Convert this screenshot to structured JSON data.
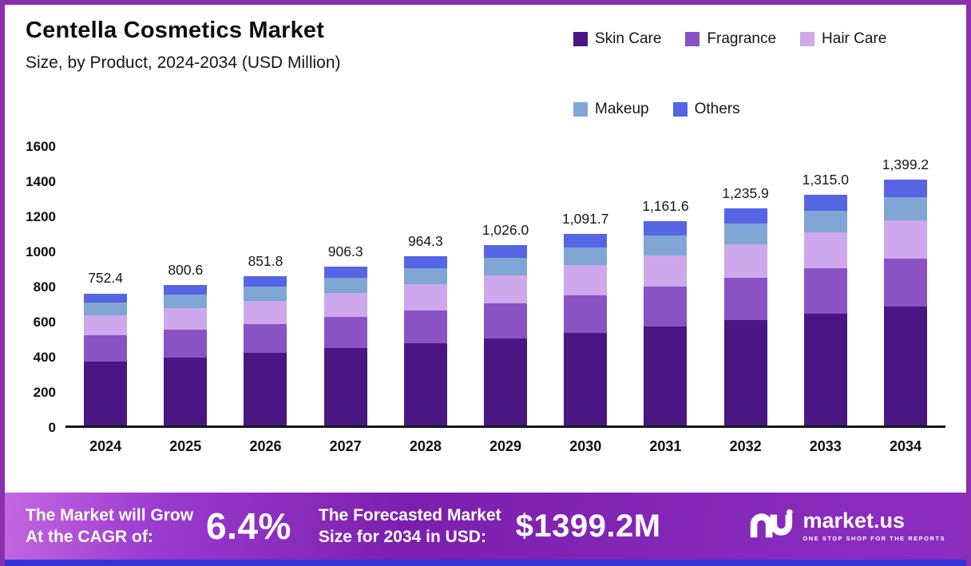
{
  "header": {
    "title": "Centella Cosmetics Market",
    "subtitle": "Size, by Product, 2024-2034 (USD Million)"
  },
  "chart_data": {
    "type": "bar",
    "stacked": true,
    "title": "Centella Cosmetics Market",
    "subtitle": "Size, by Product, 2024-2034 (USD Million)",
    "unit": "USD Million",
    "categories": [
      "2024",
      "2025",
      "2026",
      "2027",
      "2028",
      "2029",
      "2030",
      "2031",
      "2032",
      "2033",
      "2034"
    ],
    "totals": [
      752.4,
      800.6,
      851.8,
      906.3,
      964.3,
      1026.0,
      1091.7,
      1161.6,
      1235.9,
      1315.0,
      1399.2
    ],
    "total_labels": [
      "752.4",
      "800.6",
      "851.8",
      "906.3",
      "964.3",
      "1,026.0",
      "1,091.7",
      "1,161.6",
      "1,235.9",
      "1,315.0",
      "1,399.2"
    ],
    "ylim": [
      0,
      1600
    ],
    "ytick_step": 200,
    "grid": false,
    "legend_position": "top-right",
    "series": [
      {
        "name": "Skin Care",
        "color": "#4a1682",
        "values": [
          364.9,
          388.3,
          413.1,
          439.6,
          467.7,
          497.6,
          529.5,
          563.4,
          599.4,
          637.8,
          678.6
        ]
      },
      {
        "name": "Fragrance",
        "color": "#8952c5",
        "values": [
          146.7,
          156.1,
          166.1,
          176.7,
          188.0,
          200.1,
          212.9,
          226.5,
          241.0,
          256.4,
          272.8
        ]
      },
      {
        "name": "Hair Care",
        "color": "#cda8ea",
        "values": [
          116.6,
          124.1,
          132.0,
          140.5,
          149.5,
          159.0,
          169.2,
          180.0,
          191.6,
          203.8,
          216.9
        ]
      },
      {
        "name": "Makeup",
        "color": "#7fa6d4",
        "values": [
          71.5,
          76.1,
          80.9,
          86.1,
          91.6,
          97.5,
          103.7,
          110.4,
          117.4,
          124.9,
          132.9
        ]
      },
      {
        "name": "Others",
        "color": "#5565e4",
        "values": [
          52.7,
          56.0,
          59.7,
          63.4,
          67.5,
          71.8,
          76.4,
          81.3,
          86.5,
          92.1,
          98.0
        ]
      }
    ]
  },
  "banner": {
    "grow_line1": "The Market will Grow",
    "grow_line2": "At the CAGR of:",
    "cagr_value": "6.4%",
    "forecast_line1": "The Forecasted Market",
    "forecast_line2": "Size for 2034 in USD:",
    "forecast_value": "$1399.2M",
    "logo_text": "market.us",
    "logo_tagline": "ONE STOP SHOP FOR THE REPORTS"
  },
  "theme": {
    "frame_border": "#8b2fae",
    "bottom_strip": "#3533d6",
    "banner_gradient_start": "#c468e2",
    "banner_gradient_end": "#8d2ec2"
  }
}
